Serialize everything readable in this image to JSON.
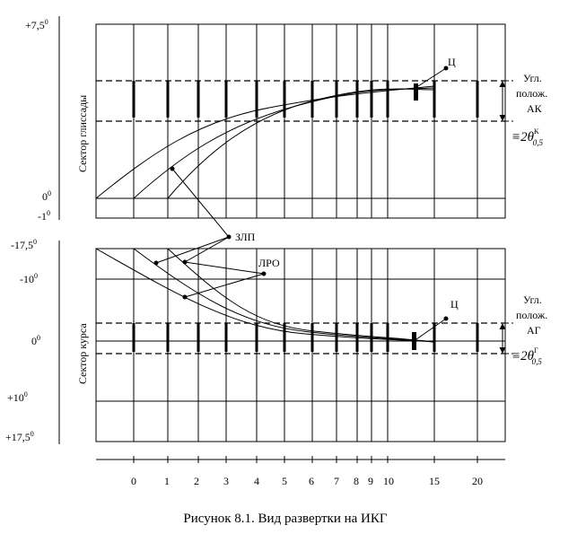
{
  "caption": "Рисунок 8.1. Вид развертки на ИКГ",
  "top_panel": {
    "sector_label": "Сектор глиссады",
    "y_labels": [
      {
        "base": "+7,5",
        "sup": "0"
      },
      {
        "base": "0",
        "sup": "0"
      },
      {
        "base": "-1",
        "sup": "0"
      }
    ],
    "marker_label": "Ц",
    "right_label_lines": [
      "Угл.",
      "полож.",
      "АК"
    ],
    "formula": {
      "prefix": "≡2θ",
      "sup": "K",
      "sub": "0,5"
    }
  },
  "bottom_panel": {
    "sector_label": "Сектор курса",
    "y_labels": [
      {
        "base": "-17,5",
        "sup": "0"
      },
      {
        "base": "-10",
        "sup": "0"
      },
      {
        "base": "0",
        "sup": "0"
      },
      {
        "base": "+10",
        "sup": "0"
      },
      {
        "base": "+17,5",
        "sup": "0"
      }
    ],
    "marker_label": "Ц",
    "right_label_lines": [
      "Угл.",
      "полож.",
      "АГ"
    ],
    "formula": {
      "prefix": "≡2θ",
      "sup": "Г",
      "sub": "0,5"
    }
  },
  "callouts": {
    "zlp": "ЗЛП",
    "lro": "ЛРО"
  },
  "x_axis_labels": [
    "0",
    "1",
    "2",
    "3",
    "4",
    "5",
    "6",
    "7",
    "8",
    "9",
    "10",
    "15",
    "20"
  ]
}
